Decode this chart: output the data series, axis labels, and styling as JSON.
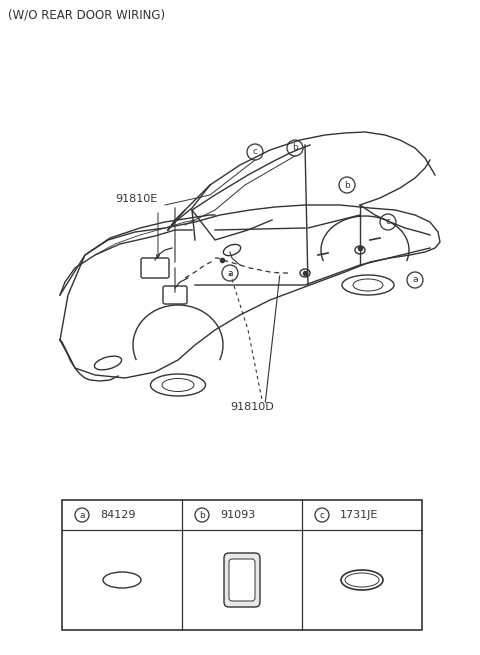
{
  "title": "(W/O REAR DOOR WIRING)",
  "title_fontsize": 8.5,
  "bg_color": "#ffffff",
  "line_color": "#333333",
  "label_91810E": "91810E",
  "label_91810D": "91810D",
  "parts": [
    {
      "label": "a",
      "part_num": "84129"
    },
    {
      "label": "b",
      "part_num": "91093"
    },
    {
      "label": "c",
      "part_num": "1731JE"
    }
  ]
}
